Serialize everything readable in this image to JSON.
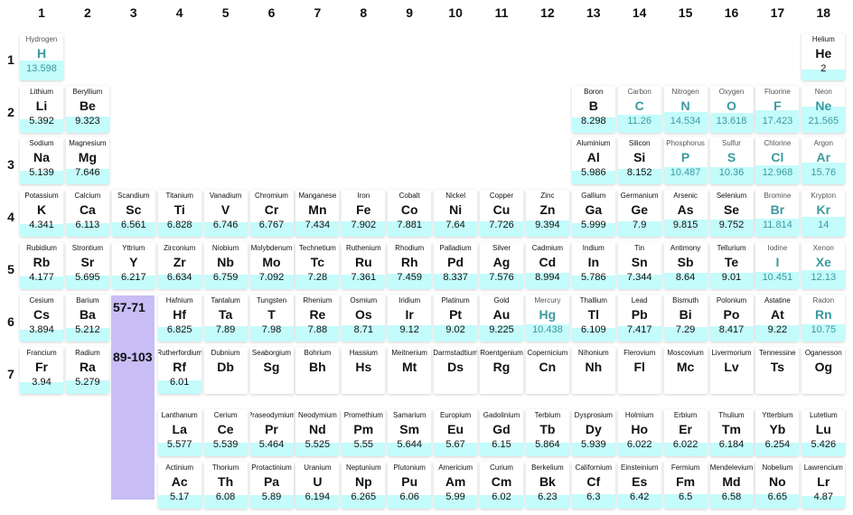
{
  "group_numbers": [
    "1",
    "2",
    "3",
    "4",
    "5",
    "6",
    "7",
    "8",
    "9",
    "10",
    "11",
    "12",
    "13",
    "14",
    "15",
    "16",
    "17",
    "18"
  ],
  "period_numbers": [
    "1",
    "2",
    "3",
    "4",
    "5",
    "6",
    "7"
  ],
  "series_labels": {
    "lanthanides": "57-71",
    "actinides": "89-103"
  },
  "fill_scale_max": 25,
  "colors": {
    "fill": "#c4fbfb",
    "series_block": "#c8bdf5",
    "gas_text": "#3a9aa0"
  },
  "elements": [
    {
      "name": "Hydrogen",
      "symbol": "H",
      "value": "13.598",
      "col": 1,
      "row": 1,
      "gas": true
    },
    {
      "name": "Helium",
      "symbol": "He",
      "value": "2",
      "col": 18,
      "row": 1,
      "gas": false
    },
    {
      "name": "Lithium",
      "symbol": "Li",
      "value": "5.392",
      "col": 1,
      "row": 2,
      "gas": false
    },
    {
      "name": "Beryllium",
      "symbol": "Be",
      "value": "9.323",
      "col": 2,
      "row": 2,
      "gas": false
    },
    {
      "name": "Boron",
      "symbol": "B",
      "value": "8.298",
      "col": 13,
      "row": 2,
      "gas": false
    },
    {
      "name": "Carbon",
      "symbol": "C",
      "value": "11.26",
      "col": 14,
      "row": 2,
      "gas": true
    },
    {
      "name": "Nitrogen",
      "symbol": "N",
      "value": "14.534",
      "col": 15,
      "row": 2,
      "gas": true
    },
    {
      "name": "Oxygen",
      "symbol": "O",
      "value": "13.618",
      "col": 16,
      "row": 2,
      "gas": true
    },
    {
      "name": "Fluorine",
      "symbol": "F",
      "value": "17.423",
      "col": 17,
      "row": 2,
      "gas": true
    },
    {
      "name": "Neon",
      "symbol": "Ne",
      "value": "21.565",
      "col": 18,
      "row": 2,
      "gas": true
    },
    {
      "name": "Sodium",
      "symbol": "Na",
      "value": "5.139",
      "col": 1,
      "row": 3,
      "gas": false
    },
    {
      "name": "Magnesium",
      "symbol": "Mg",
      "value": "7.646",
      "col": 2,
      "row": 3,
      "gas": false
    },
    {
      "name": "Aluminium",
      "symbol": "Al",
      "value": "5.986",
      "col": 13,
      "row": 3,
      "gas": false
    },
    {
      "name": "Silicon",
      "symbol": "Si",
      "value": "8.152",
      "col": 14,
      "row": 3,
      "gas": false
    },
    {
      "name": "Phosphorus",
      "symbol": "P",
      "value": "10.487",
      "col": 15,
      "row": 3,
      "gas": true
    },
    {
      "name": "Sulfur",
      "symbol": "S",
      "value": "10.36",
      "col": 16,
      "row": 3,
      "gas": true
    },
    {
      "name": "Chlorine",
      "symbol": "Cl",
      "value": "12.968",
      "col": 17,
      "row": 3,
      "gas": true
    },
    {
      "name": "Argon",
      "symbol": "Ar",
      "value": "15.76",
      "col": 18,
      "row": 3,
      "gas": true
    },
    {
      "name": "Potassium",
      "symbol": "K",
      "value": "4.341",
      "col": 1,
      "row": 4,
      "gas": false
    },
    {
      "name": "Calcium",
      "symbol": "Ca",
      "value": "6.113",
      "col": 2,
      "row": 4,
      "gas": false
    },
    {
      "name": "Scandium",
      "symbol": "Sc",
      "value": "6.561",
      "col": 3,
      "row": 4,
      "gas": false
    },
    {
      "name": "Titanium",
      "symbol": "Ti",
      "value": "6.828",
      "col": 4,
      "row": 4,
      "gas": false
    },
    {
      "name": "Vanadium",
      "symbol": "V",
      "value": "6.746",
      "col": 5,
      "row": 4,
      "gas": false
    },
    {
      "name": "Chromium",
      "symbol": "Cr",
      "value": "6.767",
      "col": 6,
      "row": 4,
      "gas": false
    },
    {
      "name": "Manganese",
      "symbol": "Mn",
      "value": "7.434",
      "col": 7,
      "row": 4,
      "gas": false
    },
    {
      "name": "Iron",
      "symbol": "Fe",
      "value": "7.902",
      "col": 8,
      "row": 4,
      "gas": false
    },
    {
      "name": "Cobalt",
      "symbol": "Co",
      "value": "7.881",
      "col": 9,
      "row": 4,
      "gas": false
    },
    {
      "name": "Nickel",
      "symbol": "Ni",
      "value": "7.64",
      "col": 10,
      "row": 4,
      "gas": false
    },
    {
      "name": "Copper",
      "symbol": "Cu",
      "value": "7.726",
      "col": 11,
      "row": 4,
      "gas": false
    },
    {
      "name": "Zinc",
      "symbol": "Zn",
      "value": "9.394",
      "col": 12,
      "row": 4,
      "gas": false
    },
    {
      "name": "Gallium",
      "symbol": "Ga",
      "value": "5.999",
      "col": 13,
      "row": 4,
      "gas": false
    },
    {
      "name": "Germanium",
      "symbol": "Ge",
      "value": "7.9",
      "col": 14,
      "row": 4,
      "gas": false
    },
    {
      "name": "Arsenic",
      "symbol": "As",
      "value": "9.815",
      "col": 15,
      "row": 4,
      "gas": false
    },
    {
      "name": "Selenium",
      "symbol": "Se",
      "value": "9.752",
      "col": 16,
      "row": 4,
      "gas": false
    },
    {
      "name": "Bromine",
      "symbol": "Br",
      "value": "11.814",
      "col": 17,
      "row": 4,
      "gas": true
    },
    {
      "name": "Krypton",
      "symbol": "Kr",
      "value": "14",
      "col": 18,
      "row": 4,
      "gas": true
    },
    {
      "name": "Rubidium",
      "symbol": "Rb",
      "value": "4.177",
      "col": 1,
      "row": 5,
      "gas": false
    },
    {
      "name": "Strontium",
      "symbol": "Sr",
      "value": "5.695",
      "col": 2,
      "row": 5,
      "gas": false
    },
    {
      "name": "Yttrium",
      "symbol": "Y",
      "value": "6.217",
      "col": 3,
      "row": 5,
      "gas": false
    },
    {
      "name": "Zirconium",
      "symbol": "Zr",
      "value": "6.634",
      "col": 4,
      "row": 5,
      "gas": false
    },
    {
      "name": "Niobium",
      "symbol": "Nb",
      "value": "6.759",
      "col": 5,
      "row": 5,
      "gas": false
    },
    {
      "name": "Molybdenum",
      "symbol": "Mo",
      "value": "7.092",
      "col": 6,
      "row": 5,
      "gas": false
    },
    {
      "name": "Technetium",
      "symbol": "Tc",
      "value": "7.28",
      "col": 7,
      "row": 5,
      "gas": false
    },
    {
      "name": "Ruthenium",
      "symbol": "Ru",
      "value": "7.361",
      "col": 8,
      "row": 5,
      "gas": false
    },
    {
      "name": "Rhodium",
      "symbol": "Rh",
      "value": "7.459",
      "col": 9,
      "row": 5,
      "gas": false
    },
    {
      "name": "Palladium",
      "symbol": "Pd",
      "value": "8.337",
      "col": 10,
      "row": 5,
      "gas": false
    },
    {
      "name": "Silver",
      "symbol": "Ag",
      "value": "7.576",
      "col": 11,
      "row": 5,
      "gas": false
    },
    {
      "name": "Cadmium",
      "symbol": "Cd",
      "value": "8.994",
      "col": 12,
      "row": 5,
      "gas": false
    },
    {
      "name": "Indium",
      "symbol": "In",
      "value": "5.786",
      "col": 13,
      "row": 5,
      "gas": false
    },
    {
      "name": "Tin",
      "symbol": "Sn",
      "value": "7.344",
      "col": 14,
      "row": 5,
      "gas": false
    },
    {
      "name": "Antimony",
      "symbol": "Sb",
      "value": "8.64",
      "col": 15,
      "row": 5,
      "gas": false
    },
    {
      "name": "Tellurium",
      "symbol": "Te",
      "value": "9.01",
      "col": 16,
      "row": 5,
      "gas": false
    },
    {
      "name": "Iodine",
      "symbol": "I",
      "value": "10.451",
      "col": 17,
      "row": 5,
      "gas": true
    },
    {
      "name": "Xenon",
      "symbol": "Xe",
      "value": "12.13",
      "col": 18,
      "row": 5,
      "gas": true
    },
    {
      "name": "Cesium",
      "symbol": "Cs",
      "value": "3.894",
      "col": 1,
      "row": 6,
      "gas": false
    },
    {
      "name": "Barium",
      "symbol": "Ba",
      "value": "5.212",
      "col": 2,
      "row": 6,
      "gas": false
    },
    {
      "name": "Hafnium",
      "symbol": "Hf",
      "value": "6.825",
      "col": 4,
      "row": 6,
      "gas": false
    },
    {
      "name": "Tantalum",
      "symbol": "Ta",
      "value": "7.89",
      "col": 5,
      "row": 6,
      "gas": false
    },
    {
      "name": "Tungsten",
      "symbol": "T",
      "value": "7.98",
      "col": 6,
      "row": 6,
      "gas": false
    },
    {
      "name": "Rhenium",
      "symbol": "Re",
      "value": "7.88",
      "col": 7,
      "row": 6,
      "gas": false
    },
    {
      "name": "Osmium",
      "symbol": "Os",
      "value": "8.71",
      "col": 8,
      "row": 6,
      "gas": false
    },
    {
      "name": "Iridium",
      "symbol": "Ir",
      "value": "9.12",
      "col": 9,
      "row": 6,
      "gas": false
    },
    {
      "name": "Platinum",
      "symbol": "Pt",
      "value": "9.02",
      "col": 10,
      "row": 6,
      "gas": false
    },
    {
      "name": "Gold",
      "symbol": "Au",
      "value": "9.225",
      "col": 11,
      "row": 6,
      "gas": false
    },
    {
      "name": "Mercury",
      "symbol": "Hg",
      "value": "10.438",
      "col": 12,
      "row": 6,
      "gas": true
    },
    {
      "name": "Thallium",
      "symbol": "Tl",
      "value": "6.109",
      "col": 13,
      "row": 6,
      "gas": false
    },
    {
      "name": "Lead",
      "symbol": "Pb",
      "value": "7.417",
      "col": 14,
      "row": 6,
      "gas": false
    },
    {
      "name": "Bismuth",
      "symbol": "Bi",
      "value": "7.29",
      "col": 15,
      "row": 6,
      "gas": false
    },
    {
      "name": "Polonium",
      "symbol": "Po",
      "value": "8.417",
      "col": 16,
      "row": 6,
      "gas": false
    },
    {
      "name": "Astatine",
      "symbol": "At",
      "value": "9.22",
      "col": 17,
      "row": 6,
      "gas": false
    },
    {
      "name": "Radon",
      "symbol": "Rn",
      "value": "10.75",
      "col": 18,
      "row": 6,
      "gas": true
    },
    {
      "name": "Francium",
      "symbol": "Fr",
      "value": "3.94",
      "col": 1,
      "row": 7,
      "gas": false
    },
    {
      "name": "Radium",
      "symbol": "Ra",
      "value": "5.279",
      "col": 2,
      "row": 7,
      "gas": false
    },
    {
      "name": "Rutherfordium",
      "symbol": "Rf",
      "value": "6.01",
      "col": 4,
      "row": 7,
      "gas": false
    },
    {
      "name": "Dubnium",
      "symbol": "Db",
      "value": "",
      "col": 5,
      "row": 7,
      "gas": false
    },
    {
      "name": "Seaborgium",
      "symbol": "Sg",
      "value": "",
      "col": 6,
      "row": 7,
      "gas": false
    },
    {
      "name": "Bohrium",
      "symbol": "Bh",
      "value": "",
      "col": 7,
      "row": 7,
      "gas": false
    },
    {
      "name": "Hassium",
      "symbol": "Hs",
      "value": "",
      "col": 8,
      "row": 7,
      "gas": false
    },
    {
      "name": "Meitnerium",
      "symbol": "Mt",
      "value": "",
      "col": 9,
      "row": 7,
      "gas": false
    },
    {
      "name": "Darmstadtium",
      "symbol": "Ds",
      "value": "",
      "col": 10,
      "row": 7,
      "gas": false
    },
    {
      "name": "Roentgenium",
      "symbol": "Rg",
      "value": "",
      "col": 11,
      "row": 7,
      "gas": false
    },
    {
      "name": "Copernicium",
      "symbol": "Cn",
      "value": "",
      "col": 12,
      "row": 7,
      "gas": false
    },
    {
      "name": "Nihonium",
      "symbol": "Nh",
      "value": "",
      "col": 13,
      "row": 7,
      "gas": false
    },
    {
      "name": "Flerovium",
      "symbol": "Fl",
      "value": "",
      "col": 14,
      "row": 7,
      "gas": false
    },
    {
      "name": "Moscovium",
      "symbol": "Mc",
      "value": "",
      "col": 15,
      "row": 7,
      "gas": false
    },
    {
      "name": "Livermorium",
      "symbol": "Lv",
      "value": "",
      "col": 16,
      "row": 7,
      "gas": false
    },
    {
      "name": "Tennessine",
      "symbol": "Ts",
      "value": "",
      "col": 17,
      "row": 7,
      "gas": false
    },
    {
      "name": "Oganesson",
      "symbol": "Og",
      "value": "",
      "col": 18,
      "row": 7,
      "gas": false
    },
    {
      "name": "Lanthanum",
      "symbol": "La",
      "value": "5.577",
      "col": 4,
      "row": 9,
      "gas": false
    },
    {
      "name": "Cerium",
      "symbol": "Ce",
      "value": "5.539",
      "col": 5,
      "row": 9,
      "gas": false
    },
    {
      "name": "Praseodymium",
      "symbol": "Pr",
      "value": "5.464",
      "col": 6,
      "row": 9,
      "gas": false
    },
    {
      "name": "Neodymium",
      "symbol": "Nd",
      "value": "5.525",
      "col": 7,
      "row": 9,
      "gas": false
    },
    {
      "name": "Promethium",
      "symbol": "Pm",
      "value": "5.55",
      "col": 8,
      "row": 9,
      "gas": false
    },
    {
      "name": "Samarium",
      "symbol": "Sm",
      "value": "5.644",
      "col": 9,
      "row": 9,
      "gas": false
    },
    {
      "name": "Europium",
      "symbol": "Eu",
      "value": "5.67",
      "col": 10,
      "row": 9,
      "gas": false
    },
    {
      "name": "Gadolinium",
      "symbol": "Gd",
      "value": "6.15",
      "col": 11,
      "row": 9,
      "gas": false
    },
    {
      "name": "Terbium",
      "symbol": "Tb",
      "value": "5.864",
      "col": 12,
      "row": 9,
      "gas": false
    },
    {
      "name": "Dysprosium",
      "symbol": "Dy",
      "value": "5.939",
      "col": 13,
      "row": 9,
      "gas": false
    },
    {
      "name": "Holmium",
      "symbol": "Ho",
      "value": "6.022",
      "col": 14,
      "row": 9,
      "gas": false
    },
    {
      "name": "Erbium",
      "symbol": "Er",
      "value": "6.022",
      "col": 15,
      "row": 9,
      "gas": false
    },
    {
      "name": "Thulium",
      "symbol": "Tm",
      "value": "6.184",
      "col": 16,
      "row": 9,
      "gas": false
    },
    {
      "name": "Ytterbium",
      "symbol": "Yb",
      "value": "6.254",
      "col": 17,
      "row": 9,
      "gas": false
    },
    {
      "name": "Lutetium",
      "symbol": "Lu",
      "value": "5.426",
      "col": 18,
      "row": 9,
      "gas": false
    },
    {
      "name": "Actinium",
      "symbol": "Ac",
      "value": "5.17",
      "col": 4,
      "row": 10,
      "gas": false
    },
    {
      "name": "Thorium",
      "symbol": "Th",
      "value": "6.08",
      "col": 5,
      "row": 10,
      "gas": false
    },
    {
      "name": "Protactinium",
      "symbol": "Pa",
      "value": "5.89",
      "col": 6,
      "row": 10,
      "gas": false
    },
    {
      "name": "Uranium",
      "symbol": "U",
      "value": "6.194",
      "col": 7,
      "row": 10,
      "gas": false
    },
    {
      "name": "Neptunium",
      "symbol": "Np",
      "value": "6.265",
      "col": 8,
      "row": 10,
      "gas": false
    },
    {
      "name": "Plutonium",
      "symbol": "Pu",
      "value": "6.06",
      "col": 9,
      "row": 10,
      "gas": false
    },
    {
      "name": "Americium",
      "symbol": "Am",
      "value": "5.99",
      "col": 10,
      "row": 10,
      "gas": false
    },
    {
      "name": "Curium",
      "symbol": "Cm",
      "value": "6.02",
      "col": 11,
      "row": 10,
      "gas": false
    },
    {
      "name": "Berkelium",
      "symbol": "Bk",
      "value": "6.23",
      "col": 12,
      "row": 10,
      "gas": false
    },
    {
      "name": "Californium",
      "symbol": "Cf",
      "value": "6.3",
      "col": 13,
      "row": 10,
      "gas": false
    },
    {
      "name": "Einsteinium",
      "symbol": "Es",
      "value": "6.42",
      "col": 14,
      "row": 10,
      "gas": false
    },
    {
      "name": "Fermium",
      "symbol": "Fm",
      "value": "6.5",
      "col": 15,
      "row": 10,
      "gas": false
    },
    {
      "name": "Mendelevium",
      "symbol": "Md",
      "value": "6.58",
      "col": 16,
      "row": 10,
      "gas": false
    },
    {
      "name": "Nobelium",
      "symbol": "No",
      "value": "6.65",
      "col": 17,
      "row": 10,
      "gas": false
    },
    {
      "name": "Lawrencium",
      "symbol": "Lr",
      "value": "4.87",
      "col": 18,
      "row": 10,
      "gas": false
    }
  ]
}
